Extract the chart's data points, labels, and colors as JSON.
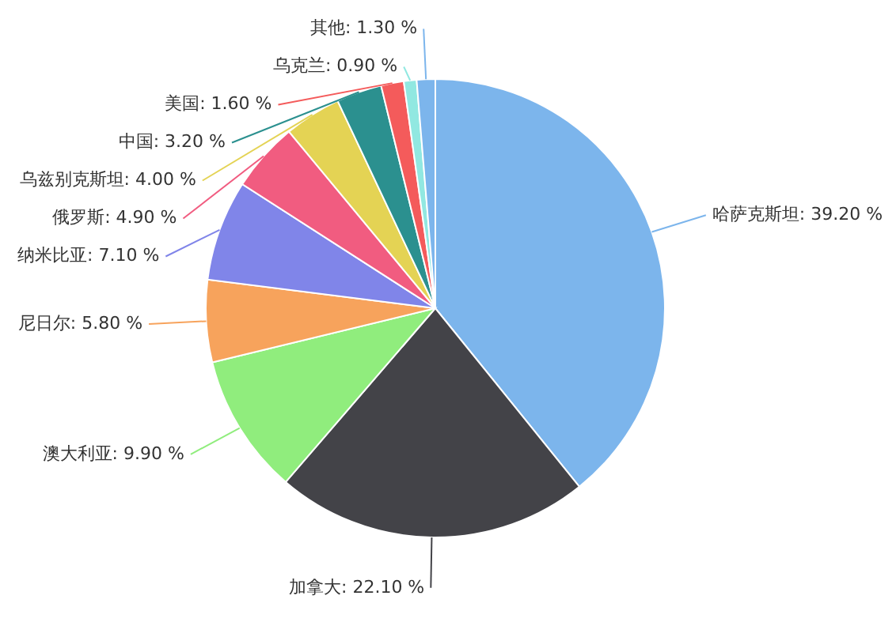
{
  "chart_data": {
    "type": "pie",
    "categories": [
      "哈萨克斯坦",
      "加拿大",
      "澳大利亚",
      "尼日尔",
      "纳米比亚",
      "俄罗斯",
      "乌兹别克斯坦",
      "中国",
      "美国",
      "乌克兰",
      "其他"
    ],
    "values": [
      39.2,
      22.1,
      9.9,
      5.8,
      7.1,
      4.9,
      4.0,
      3.2,
      1.6,
      0.9,
      1.3
    ],
    "value_labels": [
      "39.20 %",
      "22.10 %",
      "9.90 %",
      "5.80 %",
      "7.10 %",
      "4.90 %",
      "4.00 %",
      "3.20 %",
      "1.60 %",
      "0.90 %",
      "1.30 %"
    ],
    "colors": [
      "#7cb5ec",
      "#434348",
      "#90ed7d",
      "#f7a35c",
      "#8085e9",
      "#f15c80",
      "#e4d354",
      "#2b908f",
      "#f45b5b",
      "#91e8e1",
      "#7cb5ec"
    ]
  }
}
